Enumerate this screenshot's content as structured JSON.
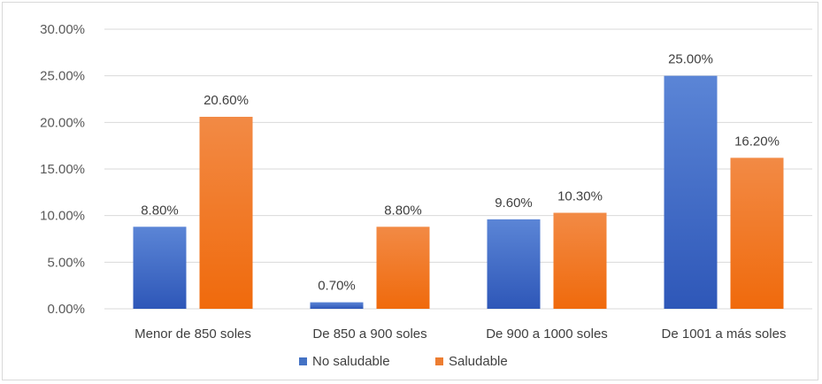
{
  "chart_data": {
    "type": "bar",
    "categories": [
      "Menor de 850 soles",
      "De 850 a 900 soles",
      "De 900 a 1000 soles",
      "De 1001 a más soles"
    ],
    "series": [
      {
        "name": "No saludable",
        "values": [
          8.8,
          0.7,
          9.6,
          25.0
        ],
        "labels": [
          "8.80%",
          "0.70%",
          "9.60%",
          "25.00%"
        ],
        "color": "#4472C4"
      },
      {
        "name": "Saludable",
        "values": [
          20.6,
          8.8,
          10.3,
          16.2
        ],
        "labels": [
          "20.60%",
          "8.80%",
          "10.30%",
          "16.20%"
        ],
        "color": "#ED7D31"
      }
    ],
    "yticks": [
      0,
      5,
      10,
      15,
      20,
      25,
      30
    ],
    "ytick_labels": [
      "0.00%",
      "5.00%",
      "10.00%",
      "15.00%",
      "20.00%",
      "25.00%",
      "30.00%"
    ],
    "ylim": [
      0,
      30
    ],
    "grid": true,
    "legend": "bottom"
  }
}
